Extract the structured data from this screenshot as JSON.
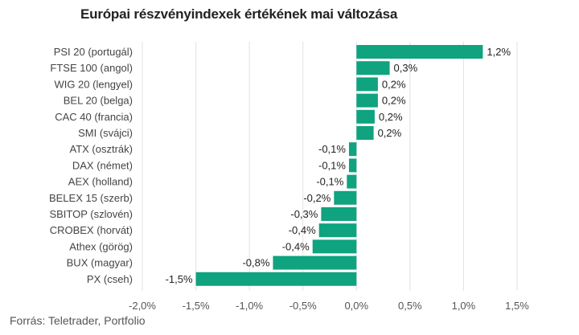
{
  "chart_data": {
    "type": "bar",
    "orientation": "horizontal",
    "title": "Európai részvényindexek értékének mai változása",
    "source": "Forrás: Teletrader, Portfolio",
    "categories": [
      "PSI 20 (portugál)",
      "FTSE 100 (angol)",
      "WIG 20 (lengyel)",
      "BEL 20 (belga)",
      "CAC 40 (francia)",
      "SMI (svájci)",
      "ATX (osztrák)",
      "DAX (német)",
      "AEX (holland)",
      "BELEX 15 (szerb)",
      "SBITOP (szlovén)",
      "CROBEX (horvát)",
      "Athex (görög)",
      "BUX (magyar)",
      "PX (cseh)"
    ],
    "values": [
      1.18,
      0.31,
      0.2,
      0.2,
      0.17,
      0.16,
      -0.07,
      -0.07,
      -0.09,
      -0.21,
      -0.33,
      -0.35,
      -0.41,
      -0.78,
      -1.5
    ],
    "data_labels": [
      "1,2%",
      "0,3%",
      "0,2%",
      "0,2%",
      "0,2%",
      "0,2%",
      "-0,1%",
      "-0,1%",
      "-0,1%",
      "-0,2%",
      "-0,3%",
      "-0,4%",
      "-0,4%",
      "-0,8%",
      "-1,5%"
    ],
    "xlim": [
      -2.0,
      1.5
    ],
    "x_ticks": [
      -2.0,
      -1.5,
      -1.0,
      -0.5,
      0.0,
      0.5,
      1.0,
      1.5
    ],
    "x_tick_labels": [
      "-2,0%",
      "-1,5%",
      "-1,0%",
      "-0,5%",
      "0,0%",
      "0,5%",
      "1,0%",
      "1,5%"
    ],
    "grid": true,
    "bar_color": "#0fa37f",
    "grid_color": "#e2e2e2"
  }
}
